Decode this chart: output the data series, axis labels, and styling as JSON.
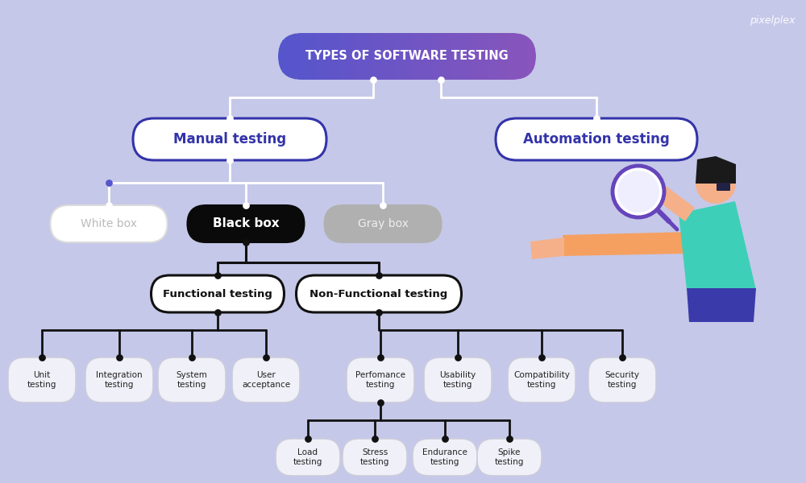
{
  "bg_color": "#c5c8e8",
  "title": "TYPES OF SOFTWARE TESTING",
  "title_grad_left": "#5555cc",
  "title_grad_right": "#8855bb",
  "title_text_color": "#ffffff",
  "manual_text": "Manual testing",
  "automation_text": "Automation testing",
  "level2_text_color": "#3333aa",
  "level2_box_edge": "#3333aa",
  "level2_box_fill": "#ffffff",
  "whitebox_text": "White box",
  "blackbox_text": "Black box",
  "graybox_text": "Gray box",
  "whitebox_bg": "#ffffff",
  "whitebox_edge": "#dddddd",
  "blackbox_bg": "#0a0a0a",
  "graybox_bg": "#b0b0b0",
  "graybox_edge": "#b0b0b0",
  "whitebox_text_color": "#bbbbbb",
  "blackbox_text_color": "#ffffff",
  "graybox_text_color": "#eeeeee",
  "functional_text": "Functional testing",
  "nonfunctional_text": "Non-Functional testing",
  "func_box_fill": "#ffffff",
  "func_box_edge": "#111111",
  "leaf_boxes": [
    "Unit\ntesting",
    "Integration\ntesting",
    "System\ntesting",
    "User\nacceptance",
    "Perfomance\ntesting",
    "Usability\ntesting",
    "Compatibility\ntesting",
    "Security\ntesting"
  ],
  "sub_leaf_boxes": [
    "Load\ntesting",
    "Stress\ntesting",
    "Endurance\ntesting",
    "Spike\ntesting"
  ],
  "leaf_bg": "#f0f0f8",
  "leaf_edge": "#ccccdd",
  "leaf_text_color": "#222222",
  "white_line_color": "#ffffff",
  "black_line_color": "#111111",
  "dot_fill_white": "#ffffff",
  "dot_fill_dark": "#111111",
  "pixelplex_text": "pixelplex",
  "teal_color": "#3ecfb8",
  "skin_color": "#f5b08a",
  "hair_color": "#1a1a1a",
  "orange_arm": "#f5a060",
  "mag_color": "#6644bb",
  "pants_color": "#3a3aaa"
}
